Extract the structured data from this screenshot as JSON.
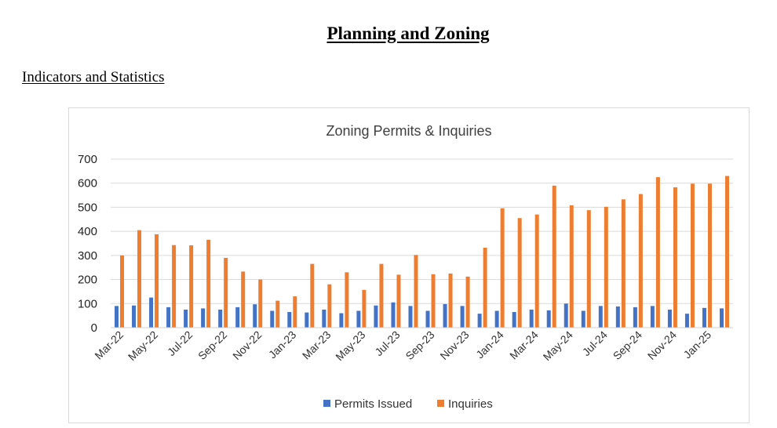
{
  "page": {
    "title": "Planning and Zoning",
    "section_heading": "Indicators and Statistics"
  },
  "colors": {
    "permits": "#4472c4",
    "inquiries": "#ed7d31",
    "grid": "#d9d9d9"
  },
  "chart_data": {
    "type": "bar",
    "title": "Zoning Permits & Inquiries",
    "xlabel": "",
    "ylabel": "",
    "ylim": [
      0,
      700
    ],
    "yticks": [
      0,
      100,
      200,
      300,
      400,
      500,
      600,
      700
    ],
    "grid": true,
    "legend_position": "bottom",
    "x_tick_labels": [
      "Mar-22",
      "May-22",
      "Jul-22",
      "Sep-22",
      "Nov-22",
      "Jan-23",
      "Mar-23",
      "May-23",
      "Jul-23",
      "Sep-23",
      "Nov-23",
      "Jan-24",
      "Mar-24",
      "May-24",
      "Jul-24",
      "Sep-24",
      "Nov-24",
      "Jan-25"
    ],
    "categories": [
      "Mar-22",
      "Apr-22",
      "May-22",
      "Jun-22",
      "Jul-22",
      "Aug-22",
      "Sep-22",
      "Oct-22",
      "Nov-22",
      "Dec-22",
      "Jan-23",
      "Feb-23",
      "Mar-23",
      "Apr-23",
      "May-23",
      "Jun-23",
      "Jul-23",
      "Aug-23",
      "Sep-23",
      "Oct-23",
      "Nov-23",
      "Dec-23",
      "Jan-24",
      "Feb-24",
      "Mar-24",
      "Apr-24",
      "May-24",
      "Jun-24",
      "Jul-24",
      "Aug-24",
      "Sep-24",
      "Oct-24",
      "Nov-24",
      "Dec-24",
      "Jan-25",
      "Feb-25"
    ],
    "series": [
      {
        "name": "Permits Issued",
        "values": [
          90,
          92,
          125,
          85,
          75,
          80,
          75,
          85,
          97,
          70,
          65,
          63,
          75,
          60,
          70,
          92,
          105,
          90,
          70,
          98,
          90,
          58,
          70,
          65,
          75,
          72,
          100,
          70,
          90,
          88,
          85,
          90,
          75,
          58,
          82,
          80
        ]
      },
      {
        "name": "Inquiries",
        "values": [
          300,
          405,
          388,
          343,
          342,
          365,
          290,
          233,
          200,
          112,
          130,
          265,
          180,
          230,
          157,
          265,
          220,
          302,
          222,
          225,
          212,
          332,
          496,
          455,
          470,
          590,
          508,
          488,
          502,
          533,
          555,
          625,
          583,
          598,
          598,
          630
        ]
      }
    ]
  }
}
